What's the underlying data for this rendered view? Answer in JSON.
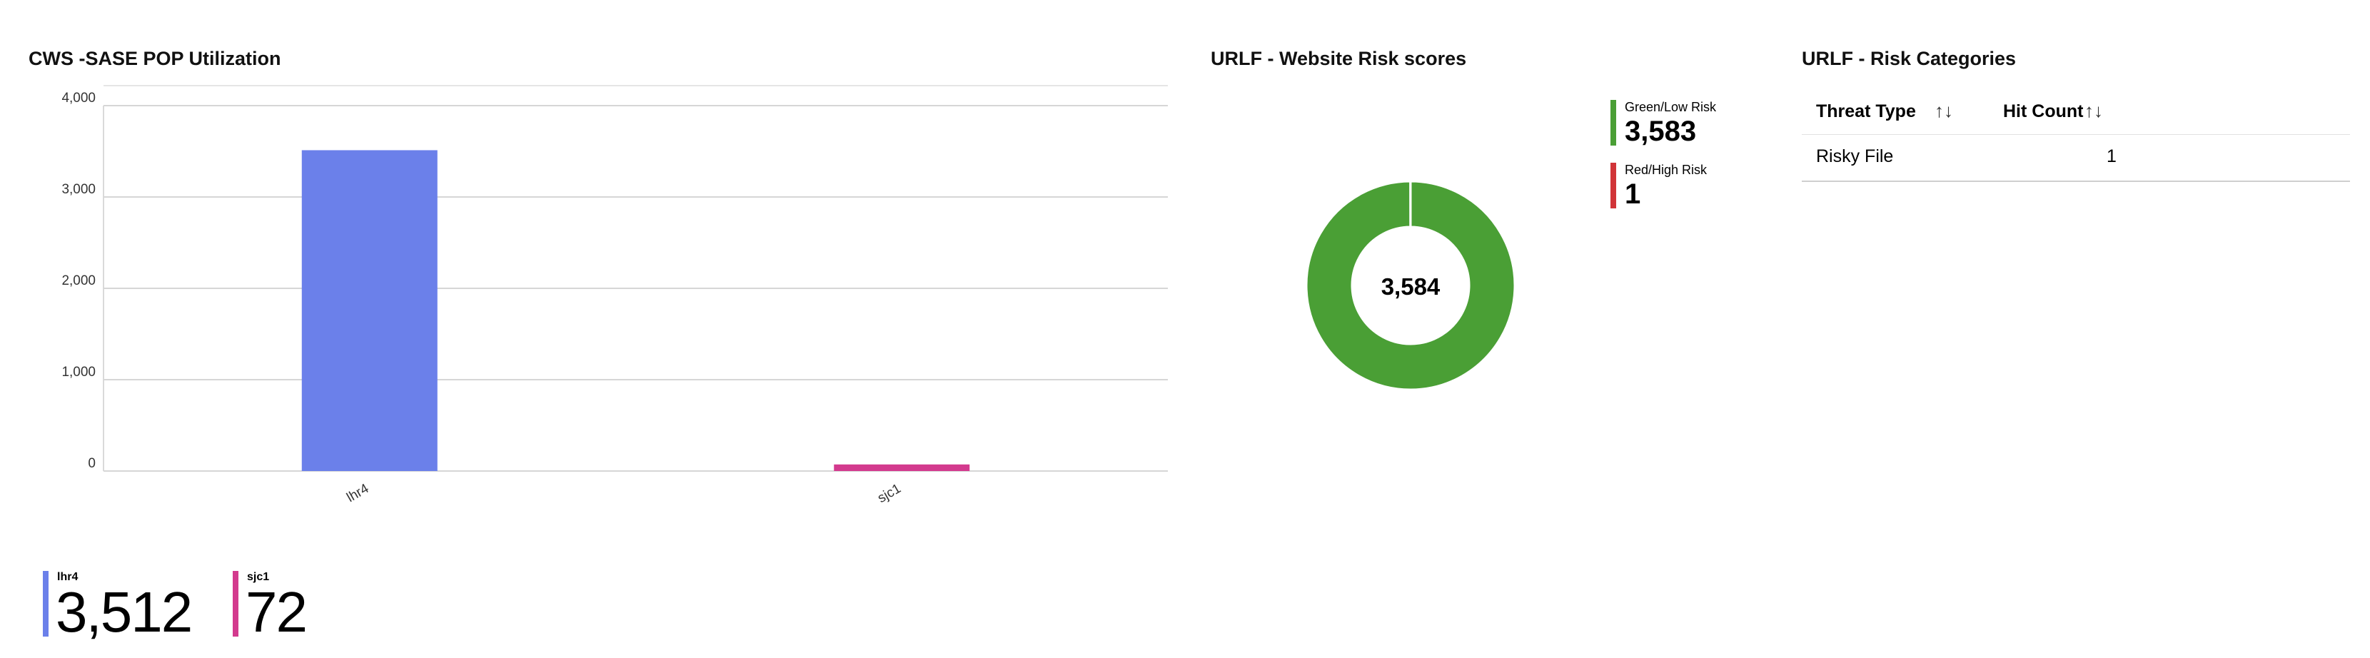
{
  "pop_panel": {
    "title": "CWS -SASE POP Utilization",
    "tiles": [
      {
        "name": "lhr4",
        "value": "3,512",
        "color": "#6b80ea"
      },
      {
        "name": "sjc1",
        "value": "72",
        "color": "#d33a8e"
      }
    ]
  },
  "risk_panel": {
    "title": "URLF - Website Risk scores",
    "total": "3,584",
    "legend": [
      {
        "name": "Green/Low Risk",
        "value": "3,583",
        "color": "#4a9f35"
      },
      {
        "name": "Red/High Risk",
        "value": "1",
        "color": "#d13438"
      }
    ]
  },
  "categories_panel": {
    "title": "URLF - Risk Categories",
    "columns": [
      {
        "label": "Threat Type",
        "sort_icon": "↑↓"
      },
      {
        "label": "Hit Count",
        "sort_icon": "↑↓"
      }
    ],
    "rows": [
      {
        "threat_type": "Risky File",
        "hit_count": "1"
      }
    ]
  },
  "chart_data": [
    {
      "type": "bar",
      "categories": [
        "lhr4",
        "sjc1"
      ],
      "values": [
        3512,
        72
      ],
      "colors": [
        "#6b80ea",
        "#d33a8e"
      ],
      "title": "CWS -SASE POP Utilization",
      "ylim": [
        0,
        4000
      ],
      "yticks": [
        0,
        1000,
        2000,
        3000,
        4000
      ],
      "ytick_labels": [
        "0",
        "1,000",
        "2,000",
        "3,000",
        "4,000"
      ],
      "grid": true,
      "legend": "bottom"
    },
    {
      "type": "pie",
      "donut": true,
      "categories": [
        "Green/Low Risk",
        "Red/High Risk"
      ],
      "values": [
        3583,
        1
      ],
      "colors": [
        "#4a9f35",
        "#d13438"
      ],
      "center_label": "3,584",
      "title": "URLF - Website Risk scores",
      "legend": "right"
    }
  ]
}
